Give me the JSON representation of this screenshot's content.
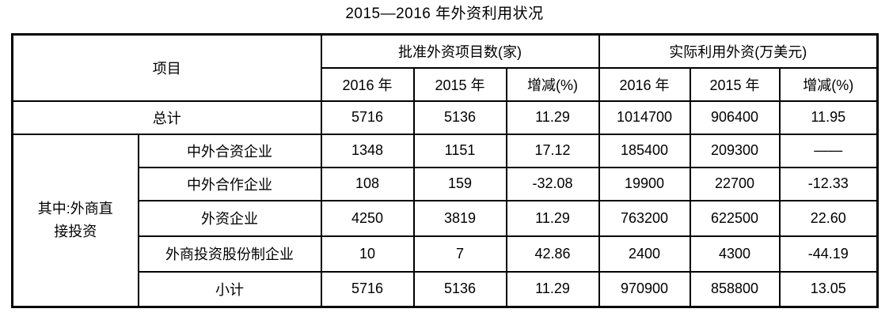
{
  "title": "2015—2016 年外资利用状况",
  "table": {
    "item_header": "项目",
    "group_headers": {
      "approved": "批准外资项目数(家)",
      "actual": "实际利用外资(万美元)"
    },
    "sub_headers": [
      "2016 年",
      "2015 年",
      "增减(%)",
      "2016 年",
      "2015 年",
      "增减(%)"
    ],
    "total_row": {
      "label": "总计",
      "values": [
        "5716",
        "5136",
        "11.29",
        "1014700",
        "906400",
        "11.95"
      ]
    },
    "category_label_line1": "其中:外商直",
    "category_label_line2": "接投资",
    "rows": [
      {
        "label": "中外合资企业",
        "values": [
          "1348",
          "1151",
          "17.12",
          "185400",
          "209300",
          "——"
        ]
      },
      {
        "label": "中外合作企业",
        "values": [
          "108",
          "159",
          "-32.08",
          "19900",
          "22700",
          "-12.33"
        ]
      },
      {
        "label": "外资企业",
        "values": [
          "4250",
          "3819",
          "11.29",
          "763200",
          "622500",
          "22.60"
        ]
      },
      {
        "label": "外商投资股份制企业",
        "values": [
          "10",
          "7",
          "42.86",
          "2400",
          "4300",
          "-44.19"
        ]
      },
      {
        "label": "小计",
        "values": [
          "5716",
          "5136",
          "11.29",
          "970900",
          "858800",
          "13.05"
        ]
      }
    ]
  }
}
